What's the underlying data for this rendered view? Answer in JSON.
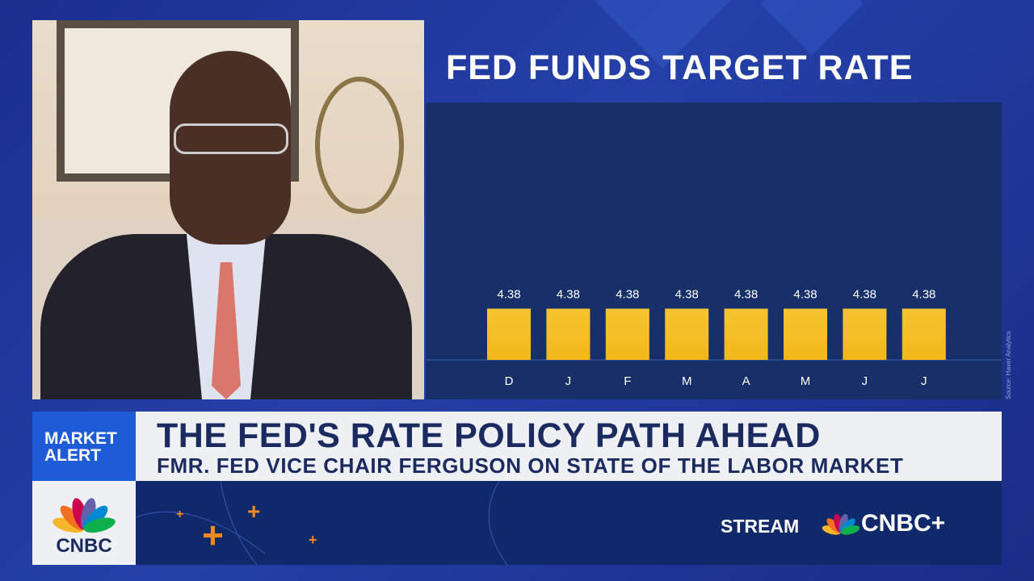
{
  "chart_data": {
    "type": "bar",
    "title": "FED FUNDS TARGET RATE",
    "categories": [
      "D",
      "J",
      "F",
      "M",
      "A",
      "M",
      "J",
      "J"
    ],
    "values": [
      4.38,
      4.38,
      4.38,
      4.38,
      4.38,
      4.38,
      4.38,
      4.38
    ],
    "value_labels": [
      "4.38",
      "4.38",
      "4.38",
      "4.38",
      "4.38",
      "4.38",
      "4.38",
      "4.38"
    ],
    "xlabel": "",
    "ylabel": "",
    "ylim": [
      0,
      22
    ],
    "grid": false,
    "bar_color": "#f2b81a",
    "source": "Source: Haver Analytics"
  },
  "banner": {
    "tag_line1": "MARKET",
    "tag_line2": "ALERT",
    "headline": "THE FED'S RATE POLICY PATH AHEAD",
    "subheadline": "FMR. FED VICE CHAIR FERGUSON ON STATE OF THE LABOR MARKET"
  },
  "branding": {
    "network": "CNBC",
    "stream_label": "STREAM",
    "stream_brand": "CNBC+"
  },
  "colors": {
    "accent": "#1e5bd6",
    "navy": "#10296a",
    "orange": "#f28a1f"
  }
}
